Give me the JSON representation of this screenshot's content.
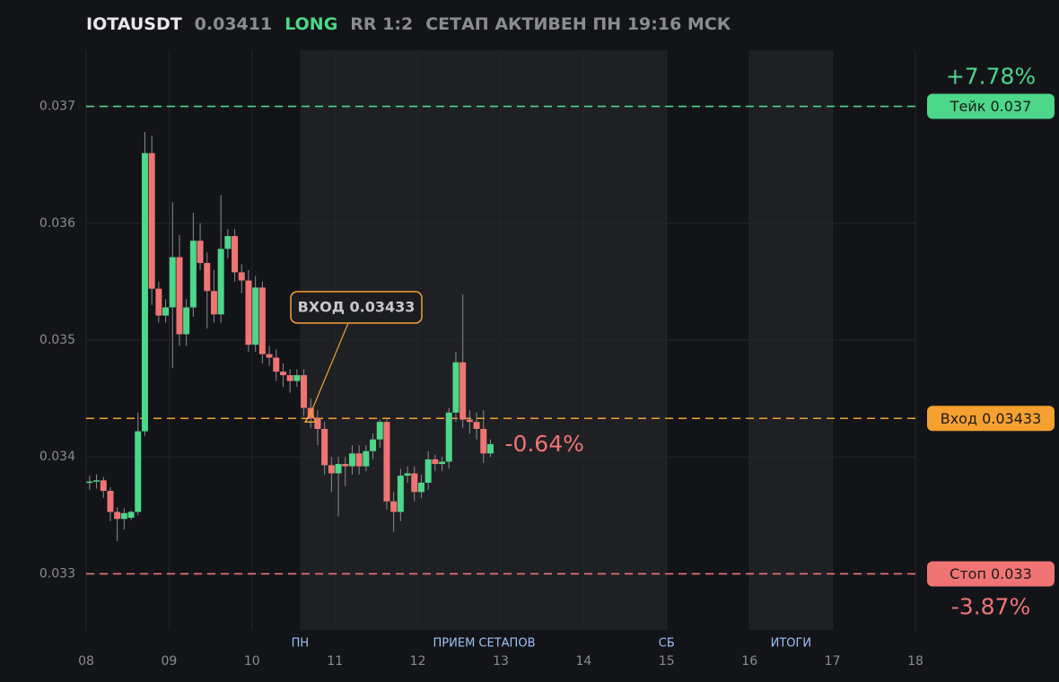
{
  "chart_data": {
    "type": "candlestick",
    "title": "IOTAUSDT",
    "price": 0.03411,
    "side": "LONG",
    "rr": "RR 1:2",
    "status": "СЕТАП АКТИВЕН ПН 19:16 МСК",
    "up_color": "#4cd78a",
    "down_color": "#f07474",
    "x": [
      8.0417,
      8.125,
      8.2083,
      8.2917,
      8.375,
      8.4583,
      8.5417,
      8.625,
      8.7083,
      8.7917,
      8.875,
      8.9583,
      9.0417,
      9.125,
      9.2083,
      9.2917,
      9.375,
      9.4583,
      9.5417,
      9.625,
      9.7083,
      9.7917,
      9.875,
      9.9583,
      10.0417,
      10.125,
      10.2083,
      10.2917,
      10.375,
      10.4583,
      10.5417,
      10.625,
      10.7083,
      10.7917,
      10.875,
      10.9583,
      11.0417,
      11.125,
      11.2083,
      11.2917,
      11.375,
      11.4583,
      11.5417,
      11.625,
      11.7083,
      11.7917,
      11.875,
      11.9583,
      12.0417,
      12.125,
      12.2083,
      12.2917,
      12.375,
      12.4583,
      12.5417,
      12.625,
      12.7083,
      12.7917,
      12.875
    ],
    "open": [
      0.03378,
      0.03379,
      0.0338,
      0.03371,
      0.03353,
      0.03347,
      0.03348,
      0.03353,
      0.03422,
      0.0366,
      0.03544,
      0.03521,
      0.03528,
      0.03571,
      0.03505,
      0.03528,
      0.03585,
      0.03566,
      0.03542,
      0.03522,
      0.03578,
      0.03589,
      0.03558,
      0.03551,
      0.03496,
      0.03545,
      0.03488,
      0.03485,
      0.03473,
      0.0347,
      0.03465,
      0.0347,
      0.03442,
      0.03433,
      0.03424,
      0.03393,
      0.03386,
      0.03394,
      0.03392,
      0.03403,
      0.03392,
      0.03405,
      0.03415,
      0.0343,
      0.03362,
      0.03353,
      0.03384,
      0.03386,
      0.0337,
      0.03378,
      0.03398,
      0.03394,
      0.03396,
      0.03438,
      0.03481,
      0.03432,
      0.0343,
      0.03424,
      0.03403
    ],
    "high": [
      0.03384,
      0.03385,
      0.03383,
      0.03374,
      0.03357,
      0.03356,
      0.03354,
      0.03438,
      0.03678,
      0.03675,
      0.0355,
      0.03535,
      0.03618,
      0.0359,
      0.03535,
      0.03609,
      0.036,
      0.03575,
      0.0356,
      0.03624,
      0.03595,
      0.03595,
      0.03565,
      0.0356,
      0.03555,
      0.0355,
      0.03495,
      0.03492,
      0.0348,
      0.03475,
      0.03475,
      0.03475,
      0.0345,
      0.0344,
      0.0343,
      0.034,
      0.034,
      0.034,
      0.0341,
      0.0341,
      0.0341,
      0.0342,
      0.03432,
      0.03432,
      0.0337,
      0.0339,
      0.03392,
      0.03392,
      0.03385,
      0.03405,
      0.03402,
      0.034,
      0.03442,
      0.0349,
      0.03539,
      0.0344,
      0.03438,
      0.0344,
      0.03415
    ],
    "low": [
      0.03372,
      0.03373,
      0.03365,
      0.03345,
      0.03328,
      0.03338,
      0.03346,
      0.0335,
      0.03418,
      0.0353,
      0.03515,
      0.03515,
      0.03476,
      0.03495,
      0.03495,
      0.0352,
      0.0356,
      0.0351,
      0.03515,
      0.03515,
      0.0357,
      0.0355,
      0.0354,
      0.0349,
      0.0349,
      0.0348,
      0.03478,
      0.03465,
      0.0346,
      0.03455,
      0.0346,
      0.03435,
      0.03425,
      0.0341,
      0.03385,
      0.0337,
      0.03349,
      0.03375,
      0.03385,
      0.03385,
      0.03388,
      0.03398,
      0.03408,
      0.03355,
      0.03336,
      0.03345,
      0.03378,
      0.03362,
      0.03365,
      0.03372,
      0.03388,
      0.03388,
      0.0339,
      0.0343,
      0.03425,
      0.0342,
      0.03415,
      0.03395,
      0.034
    ],
    "close": [
      0.03379,
      0.0338,
      0.03371,
      0.03353,
      0.03347,
      0.03352,
      0.03353,
      0.03422,
      0.0366,
      0.03544,
      0.03521,
      0.03528,
      0.03571,
      0.03505,
      0.03528,
      0.03585,
      0.03566,
      0.03542,
      0.03522,
      0.03578,
      0.03589,
      0.03558,
      0.03551,
      0.03496,
      0.03545,
      0.03488,
      0.03485,
      0.03473,
      0.0347,
      0.03465,
      0.0347,
      0.03442,
      0.03433,
      0.03424,
      0.03393,
      0.03386,
      0.03394,
      0.03392,
      0.03403,
      0.03392,
      0.03405,
      0.03415,
      0.0343,
      0.03362,
      0.03353,
      0.03384,
      0.03386,
      0.0337,
      0.03378,
      0.03398,
      0.03394,
      0.03396,
      0.03438,
      0.03481,
      0.03432,
      0.0343,
      0.03424,
      0.03403,
      0.03411
    ],
    "xlim": [
      8,
      18
    ],
    "xticks": [
      {
        "value": 8,
        "label": "08"
      },
      {
        "value": 9,
        "label": "09"
      },
      10,
      11,
      12,
      13,
      14,
      15,
      16,
      17,
      18
    ],
    "ylim": [
      0.03252,
      0.03748
    ],
    "yticks": [
      0.033,
      0.034,
      0.035,
      0.036,
      0.037
    ],
    "grid": true,
    "shaded": [
      [
        10.58,
        15
      ],
      [
        16,
        17
      ]
    ],
    "session_labels": [
      {
        "x": 10.58,
        "label": "ПН"
      },
      {
        "x": 12.8,
        "label": "ПРИЕМ СЕТАПОВ"
      },
      {
        "x": 15,
        "label": "СБ"
      },
      {
        "x": 16.5,
        "label": "ИТОГИ"
      }
    ],
    "levels": [
      {
        "label": "Тейк 0.037",
        "value": 0.037,
        "color": "#4cd78a",
        "change": 7.78,
        "change_label": "+7.78%"
      },
      {
        "label": "Вход 0.03433",
        "value": 0.03433,
        "color": "#f5a030"
      },
      {
        "label": "Стоп 0.033",
        "value": 0.033,
        "color": "#f07474",
        "change": -3.87,
        "change_label": "-3.87%"
      }
    ],
    "entry_marker": {
      "x": 10.7083,
      "value": 0.03433,
      "label": "ВХОД 0.03433",
      "color": "#f5a030"
    },
    "current_change": {
      "value": -0.64,
      "label": "-0.64%",
      "color": "#f07474"
    }
  }
}
